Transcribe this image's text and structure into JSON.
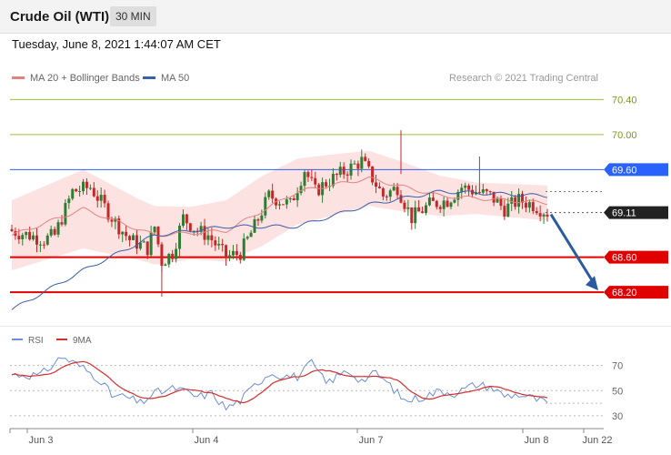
{
  "header": {
    "title": "Crude Oil (WTI)",
    "timeframe": "30 MIN",
    "datetime": "Tuesday, June 8, 2021 1:44:07 AM CET"
  },
  "legend": {
    "ma20": "MA 20 + Bollinger Bands",
    "ma50": "MA 50",
    "copyright": "Research © 2021 Trading Central"
  },
  "rsi_legend": {
    "rsi": "RSI",
    "ma9": "9MA"
  },
  "colors": {
    "bull": "#2e7d32",
    "bear": "#c62828",
    "ma20": "#e88080",
    "ma50": "#3b5ea8",
    "band": "#fde2e2",
    "blue_level": "#2962ff",
    "red_level": "#e00000",
    "green_level": "#9bbf3a",
    "arrow": "#2c5aa0",
    "rsi": "#6b8fd6",
    "rsi_ma": "#d32f2f"
  },
  "chart_data": {
    "type": "candlestick",
    "ylim": [
      67.9,
      70.55
    ],
    "x_labels": [
      "Jun 3",
      "Jun 4",
      "Jun 7",
      "Jun 8",
      "Jun 22"
    ],
    "levels": [
      {
        "value": 70.4,
        "label": "70.40",
        "kind": "resistance-green"
      },
      {
        "value": 70.0,
        "label": "70.00",
        "kind": "resistance-green"
      },
      {
        "value": 69.6,
        "label": "69.60",
        "kind": "pivot-blue"
      },
      {
        "value": 69.11,
        "label": "69.11",
        "kind": "last-price"
      },
      {
        "value": 68.6,
        "label": "68.60",
        "kind": "support-red"
      },
      {
        "value": 68.2,
        "label": "68.20",
        "kind": "support-red"
      }
    ],
    "close_anchors": [
      [
        0,
        68.9
      ],
      [
        5,
        68.85
      ],
      [
        9,
        68.8
      ],
      [
        12,
        68.85
      ],
      [
        17,
        69.35
      ],
      [
        22,
        69.4
      ],
      [
        29,
        69.0
      ],
      [
        33,
        68.8
      ],
      [
        38,
        68.7
      ],
      [
        40,
        68.95
      ],
      [
        42,
        68.55
      ],
      [
        45,
        68.65
      ],
      [
        48,
        69.05
      ],
      [
        52,
        68.9
      ],
      [
        55,
        68.85
      ],
      [
        60,
        68.6
      ],
      [
        64,
        68.65
      ],
      [
        68,
        68.95
      ],
      [
        72,
        69.3
      ],
      [
        78,
        69.2
      ],
      [
        82,
        69.6
      ],
      [
        85,
        69.35
      ],
      [
        88,
        69.45
      ],
      [
        94,
        69.6
      ],
      [
        98,
        69.7
      ],
      [
        104,
        69.3
      ],
      [
        108,
        69.4
      ],
      [
        112,
        69.05
      ],
      [
        117,
        69.2
      ],
      [
        122,
        69.25
      ],
      [
        126,
        69.4
      ],
      [
        130,
        69.35
      ],
      [
        134,
        69.3
      ],
      [
        138,
        69.15
      ],
      [
        142,
        69.25
      ],
      [
        146,
        69.2
      ],
      [
        150,
        69.11
      ]
    ],
    "ma20_anchors": [
      [
        0,
        68.85
      ],
      [
        20,
        69.15
      ],
      [
        40,
        68.85
      ],
      [
        60,
        68.9
      ],
      [
        80,
        69.35
      ],
      [
        100,
        69.5
      ],
      [
        120,
        69.3
      ],
      [
        150,
        69.22
      ]
    ],
    "ma50_anchors": [
      [
        0,
        68.0
      ],
      [
        20,
        68.45
      ],
      [
        40,
        68.85
      ],
      [
        60,
        68.95
      ],
      [
        80,
        68.95
      ],
      [
        100,
        69.2
      ],
      [
        120,
        69.35
      ],
      [
        150,
        69.3
      ]
    ],
    "band_width_anchors": [
      [
        0,
        0.4
      ],
      [
        20,
        0.45
      ],
      [
        35,
        0.35
      ],
      [
        50,
        0.3
      ],
      [
        70,
        0.4
      ],
      [
        90,
        0.35
      ],
      [
        110,
        0.28
      ],
      [
        130,
        0.18
      ],
      [
        150,
        0.2
      ]
    ],
    "forecast": {
      "from": 69.11,
      "to": 68.2
    },
    "rsi": {
      "levels": [
        70,
        50,
        30
      ],
      "ylim": [
        22,
        82
      ],
      "anchors": [
        [
          0,
          63
        ],
        [
          8,
          62
        ],
        [
          14,
          77
        ],
        [
          20,
          68
        ],
        [
          25,
          58
        ],
        [
          28,
          46
        ],
        [
          32,
          45
        ],
        [
          36,
          40
        ],
        [
          40,
          48
        ],
        [
          46,
          52
        ],
        [
          52,
          45
        ],
        [
          56,
          48
        ],
        [
          60,
          36
        ],
        [
          64,
          42
        ],
        [
          68,
          54
        ],
        [
          72,
          64
        ],
        [
          76,
          62
        ],
        [
          80,
          61
        ],
        [
          84,
          72
        ],
        [
          88,
          56
        ],
        [
          94,
          66
        ],
        [
          98,
          58
        ],
        [
          102,
          64
        ],
        [
          106,
          54
        ],
        [
          110,
          42
        ],
        [
          114,
          44
        ],
        [
          120,
          50
        ],
        [
          124,
          48
        ],
        [
          130,
          55
        ],
        [
          134,
          53
        ],
        [
          138,
          46
        ],
        [
          142,
          47
        ],
        [
          146,
          44
        ],
        [
          150,
          40
        ]
      ]
    }
  }
}
